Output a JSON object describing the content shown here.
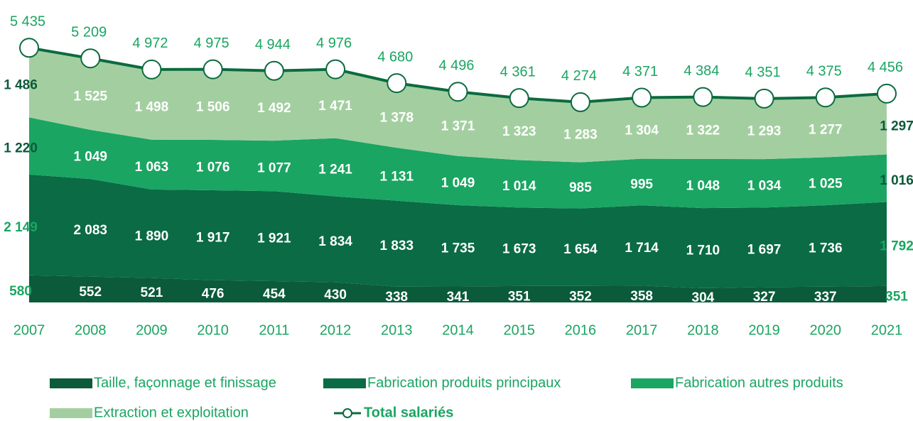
{
  "chart_data": {
    "type": "area",
    "categories": [
      "2007",
      "2008",
      "2009",
      "2010",
      "2011",
      "2012",
      "2013",
      "2014",
      "2015",
      "2016",
      "2017",
      "2018",
      "2019",
      "2020",
      "2021"
    ],
    "series": [
      {
        "name": "Taille, façonnage et finissage",
        "color": "#0b5a3a",
        "values": [
          580,
          552,
          521,
          476,
          454,
          430,
          338,
          341,
          351,
          352,
          358,
          304,
          327,
          337,
          351
        ]
      },
      {
        "name": "Fabrication produits principaux",
        "color": "#0a6b45",
        "values": [
          2149,
          2083,
          1890,
          1917,
          1921,
          1834,
          1833,
          1735,
          1673,
          1654,
          1714,
          1710,
          1697,
          1736,
          1792
        ],
        "value_labels": [
          "2 149",
          "2 083",
          "1 890",
          "1 917",
          "1 921",
          "1 834",
          "1 833",
          "1 735",
          "1 673",
          "1 654",
          "1 714",
          "1 710",
          "1 697",
          "1 736",
          "1 792"
        ]
      },
      {
        "name": "Fabrication autres produits",
        "color": "#1aa562",
        "values": [
          1220,
          1049,
          1063,
          1076,
          1077,
          1241,
          1131,
          1049,
          1014,
          985,
          995,
          1048,
          1034,
          1025,
          1016
        ],
        "value_labels": [
          "1 220",
          "1 049",
          "1 063",
          "1 076",
          "1 077",
          "1 241",
          "1 131",
          "1 049",
          "1 014",
          "985",
          "995",
          "1 048",
          "1 034",
          "1 025",
          "1 016"
        ]
      },
      {
        "name": "Extraction et exploitation",
        "color": "#a3cfa0",
        "values": [
          1486,
          1525,
          1498,
          1506,
          1492,
          1471,
          1378,
          1371,
          1323,
          1283,
          1304,
          1322,
          1293,
          1277,
          1297
        ],
        "value_labels": [
          "1 486",
          "1 525",
          "1 498",
          "1 506",
          "1 492",
          "1 471",
          "1 378",
          "1 371",
          "1 323",
          "1 283",
          "1 304",
          "1 322",
          "1 293",
          "1 277",
          "1 297"
        ]
      }
    ],
    "total": {
      "name": "Total salariés",
      "color": "#0b6b3f",
      "values": [
        5435,
        5209,
        4972,
        4975,
        4944,
        4976,
        4680,
        4496,
        4361,
        4274,
        4371,
        4384,
        4351,
        4375,
        4456
      ],
      "value_labels": [
        "5 435",
        "5 209",
        "4 972",
        "4 975",
        "4 944",
        "4 976",
        "4 680",
        "4 496",
        "4 361",
        "4 274",
        "4 371",
        "4 384",
        "4 351",
        "4 375",
        "4 456"
      ]
    }
  }
}
